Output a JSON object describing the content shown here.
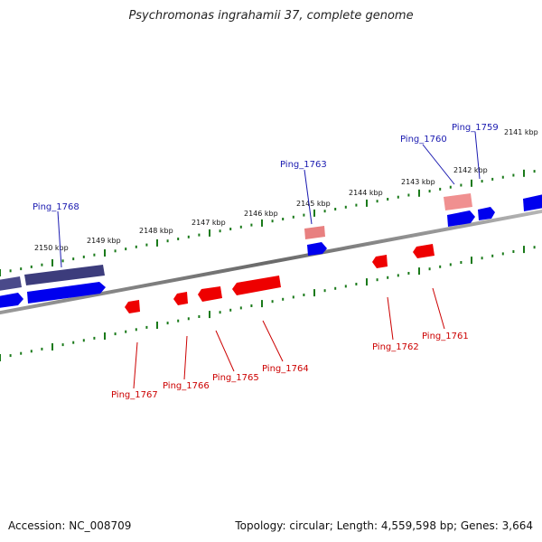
{
  "title": "Psychromonas ingrahamii 37, complete genome",
  "accession": "Accession: NC_008709",
  "summary": "Topology: circular; Length: 4,559,598 bp; Genes: 3,664",
  "kbp_labels": [
    "2150 kbp",
    "2149 kbp",
    "2148 kbp",
    "2147 kbp",
    "2146 kbp",
    "2145 kbp",
    "2144 kbp",
    "2143 kbp",
    "2142 kbp",
    "2141 kbp"
  ],
  "forward_genes": [
    "Ping_1768",
    "Ping_1763",
    "Ping_1760",
    "Ping_1759"
  ],
  "reverse_genes": [
    "Ping_1767",
    "Ping_1766",
    "Ping_1765",
    "Ping_1764",
    "Ping_1762",
    "Ping_1761"
  ],
  "colors": {
    "forward_gene": "#0000ee",
    "forward_gene_dark": "#4a4a8a",
    "reverse_gene": "#ee0000",
    "reverse_gene_light": "#f08888",
    "backbone": "#808080",
    "tick": "#1a7a1a"
  }
}
